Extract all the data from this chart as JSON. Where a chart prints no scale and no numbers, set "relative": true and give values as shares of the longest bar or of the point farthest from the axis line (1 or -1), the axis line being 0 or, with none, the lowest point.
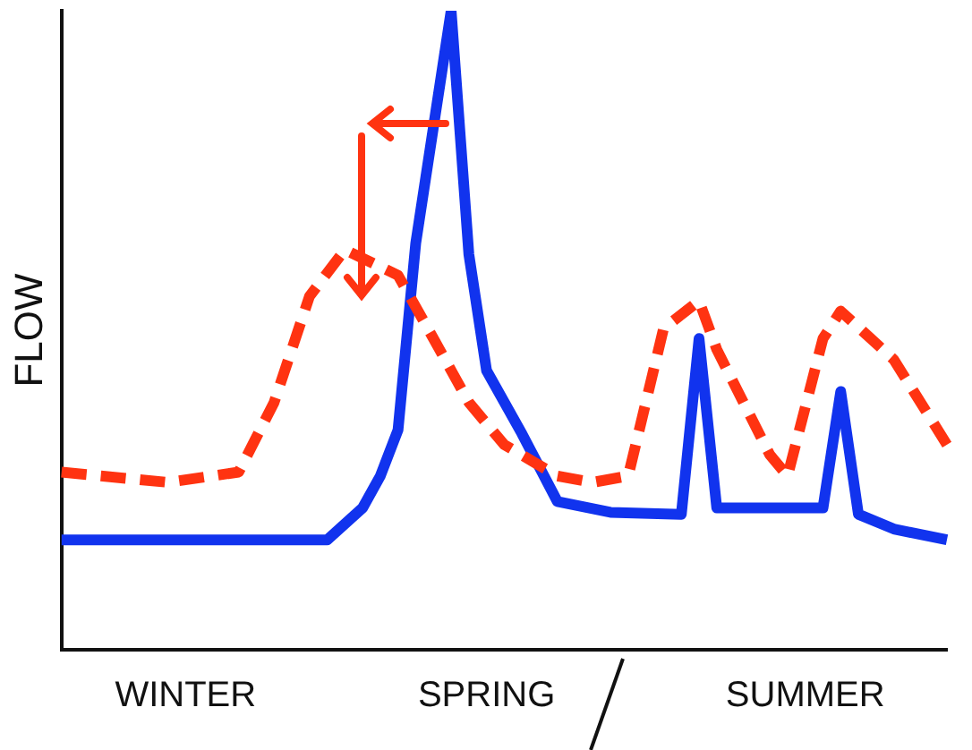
{
  "chart_data": {
    "type": "line",
    "relative": true,
    "ylabel": "FLOW",
    "marker": "none",
    "categories": [
      null,
      null,
      null,
      null,
      null,
      null,
      null,
      "WINTER",
      null,
      null,
      null,
      null,
      null,
      null,
      null,
      null,
      null,
      null,
      null,
      null,
      null,
      null,
      null,
      null,
      "SPRING",
      null,
      null,
      null,
      null,
      null,
      null,
      null,
      null,
      null,
      null,
      null,
      null,
      null,
      null,
      null,
      null,
      null,
      "SUMMER",
      null,
      null,
      null,
      null,
      null,
      null,
      null,
      null
    ],
    "series": [
      {
        "color": "#ff3311",
        "line_style": "dashed",
        "values": [
          0.278,
          null,
          null,
          null,
          null,
          null,
          0.262,
          null,
          null,
          null,
          0.278,
          null,
          0.387,
          null,
          0.553,
          null,
          0.626,
          null,
          null,
          0.586,
          null,
          0.487,
          null,
          0.387,
          null,
          0.321,
          null,
          null,
          0.272,
          null,
          0.262,
          null,
          0.272,
          null,
          0.503,
          null,
          0.546,
          0.47,
          null,
          null,
          0.305,
          0.272,
          null,
          0.487,
          0.53,
          null,
          null,
          0.454,
          null,
          null,
          0.321
        ]
      },
      {
        "color": "#1133ee",
        "line_style": "solid",
        "values": [
          0.172,
          null,
          null,
          null,
          null,
          null,
          null,
          null,
          null,
          null,
          null,
          null,
          null,
          null,
          null,
          0.172,
          null,
          0.222,
          0.272,
          0.344,
          0.636,
          null,
          1,
          0.619,
          0.437,
          null,
          0.338,
          null,
          0.232,
          null,
          null,
          0.215,
          null,
          null,
          null,
          0.212,
          0.487,
          0.222,
          null,
          null,
          null,
          null,
          null,
          0.222,
          0.404,
          0.212,
          null,
          0.189,
          null,
          null,
          0.172
        ]
      }
    ]
  }
}
